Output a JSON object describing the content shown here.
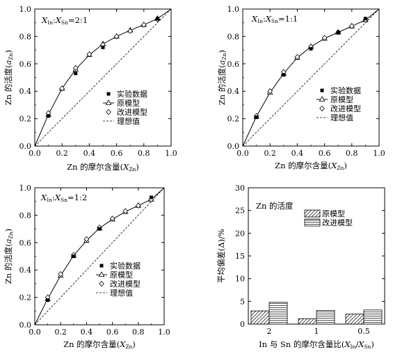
{
  "chart_data": [
    {
      "type": "scatter",
      "panel_label": "X<sub>In</sub>:X<sub>Sn</sub>=2:1",
      "panel_label_parts": {
        "x1": "X",
        "s1": "In",
        "sep": ":",
        "x2": "X",
        "s2": "Sn",
        "ratio": "=2:1"
      },
      "xlabel_parts": {
        "pre": "Zn 的摩尔含量(",
        "var": "X",
        "sub": "Zn",
        "post": ")"
      },
      "ylabel_parts": {
        "pre": "Zn 的活度(",
        "var": "a",
        "sub": "Zn",
        "post": ")"
      },
      "xlim": [
        0,
        1.0
      ],
      "ylim": [
        0,
        1.0
      ],
      "xticks": [
        "0.0",
        "0.2",
        "0.4",
        "0.6",
        "0.8",
        "1.0"
      ],
      "yticks": [
        "0.0",
        "0.2",
        "0.4",
        "0.6",
        "0.8",
        "1.0"
      ],
      "legend_position": "center-right",
      "series": [
        {
          "name": "实验数据",
          "marker": "filled-square",
          "x": [
            0.1,
            0.3,
            0.5,
            0.9
          ],
          "y": [
            0.22,
            0.53,
            0.72,
            0.93
          ]
        },
        {
          "name": "原模型",
          "marker": "triangle-line",
          "x": [
            0.0,
            0.1,
            0.2,
            0.3,
            0.4,
            0.5,
            0.6,
            0.7,
            0.8,
            0.9,
            1.0
          ],
          "y": [
            0.0,
            0.23,
            0.42,
            0.56,
            0.665,
            0.745,
            0.8,
            0.845,
            0.885,
            0.93,
            1.0
          ]
        },
        {
          "name": "改进模型",
          "marker": "diamond",
          "x": [
            0.1,
            0.2,
            0.3,
            0.4,
            0.5,
            0.6,
            0.7,
            0.8,
            0.9
          ],
          "y": [
            0.24,
            0.42,
            0.57,
            0.67,
            0.74,
            0.8,
            0.84,
            0.885,
            0.925
          ]
        },
        {
          "name": "理想值",
          "marker": "dashed-line",
          "x": [
            0,
            1.0
          ],
          "y": [
            0,
            1.0
          ]
        }
      ]
    },
    {
      "type": "scatter",
      "panel_label": "X<sub>In</sub>:X<sub>Sn</sub>=1:1",
      "panel_label_parts": {
        "x1": "X",
        "s1": "In",
        "sep": ":",
        "x2": "X",
        "s2": "Sn",
        "ratio": "=1:1"
      },
      "xlabel_parts": {
        "pre": "Zn 的摩尔含量(",
        "var": "X",
        "sub": "Zn",
        "post": ")"
      },
      "ylabel_parts": {
        "pre": "Zn 的活度(",
        "var": "a",
        "sub": "Zn",
        "post": ")"
      },
      "xlim": [
        0,
        1.0
      ],
      "ylim": [
        0,
        1.0
      ],
      "xticks": [
        "0.0",
        "0.2",
        "0.4",
        "0.6",
        "0.8",
        "1.0"
      ],
      "yticks": [
        "0.0",
        "0.2",
        "0.4",
        "0.6",
        "0.8",
        "1.0"
      ],
      "legend_position": "lower-right",
      "series": [
        {
          "name": "实验数据",
          "marker": "filled-square",
          "x": [
            0.1,
            0.3,
            0.5,
            0.7,
            0.9
          ],
          "y": [
            0.21,
            0.52,
            0.71,
            0.83,
            0.93
          ]
        },
        {
          "name": "原模型",
          "marker": "triangle-line",
          "x": [
            0.0,
            0.1,
            0.2,
            0.3,
            0.4,
            0.5,
            0.6,
            0.7,
            0.8,
            0.9,
            1.0
          ],
          "y": [
            0.0,
            0.215,
            0.39,
            0.53,
            0.645,
            0.725,
            0.785,
            0.83,
            0.875,
            0.92,
            1.0
          ]
        },
        {
          "name": "改进模型",
          "marker": "diamond",
          "x": [
            0.1,
            0.2,
            0.3,
            0.4,
            0.5,
            0.6,
            0.7,
            0.8,
            0.9
          ],
          "y": [
            0.22,
            0.4,
            0.54,
            0.65,
            0.725,
            0.79,
            0.83,
            0.875,
            0.92
          ]
        },
        {
          "name": "理想值",
          "marker": "dashed-line",
          "x": [
            0,
            1.0
          ],
          "y": [
            0,
            1.0
          ]
        }
      ]
    },
    {
      "type": "scatter",
      "panel_label": "X<sub>In</sub>:X<sub>Sn</sub>=1:2",
      "panel_label_parts": {
        "x1": "X",
        "s1": "In",
        "sep": ":",
        "x2": "X",
        "s2": "Sn",
        "ratio": "=1:2"
      },
      "xlabel_parts": {
        "pre": "Zn 的摩尔含量(",
        "var": "X",
        "sub": "Zn",
        "post": ")"
      },
      "ylabel_parts": {
        "pre": "Zn 的活度(",
        "var": "a",
        "sub": "Zn",
        "post": ")"
      },
      "xlim": [
        0,
        1.0
      ],
      "ylim": [
        0,
        1.0
      ],
      "xticks": [
        "0.0",
        "0.2",
        "0.4",
        "0.6",
        "0.8",
        "1.0"
      ],
      "yticks": [
        "0.0",
        "0.2",
        "0.4",
        "0.6",
        "0.8",
        "1.0"
      ],
      "legend_position": "lower-right",
      "series": [
        {
          "name": "实验数据",
          "marker": "filled-square",
          "x": [
            0.1,
            0.3,
            0.5,
            0.9
          ],
          "y": [
            0.18,
            0.5,
            0.7,
            0.93
          ]
        },
        {
          "name": "原模型",
          "marker": "triangle-line",
          "x": [
            0.0,
            0.1,
            0.2,
            0.3,
            0.4,
            0.5,
            0.6,
            0.7,
            0.8,
            0.9,
            1.0
          ],
          "y": [
            0.0,
            0.19,
            0.36,
            0.505,
            0.615,
            0.705,
            0.77,
            0.825,
            0.87,
            0.915,
            1.0
          ]
        },
        {
          "name": "改进模型",
          "marker": "diamond",
          "x": [
            0.1,
            0.2,
            0.3,
            0.4,
            0.5,
            0.6,
            0.7,
            0.8,
            0.9
          ],
          "y": [
            0.2,
            0.37,
            0.51,
            0.625,
            0.71,
            0.775,
            0.83,
            0.87,
            0.915
          ]
        },
        {
          "name": "理想值",
          "marker": "dashed-line",
          "x": [
            0,
            1.0
          ],
          "y": [
            0,
            1.0
          ]
        }
      ]
    },
    {
      "type": "bar",
      "title": "Zn 的活度",
      "categories": [
        "2",
        "1",
        "0.5"
      ],
      "ylim": [
        0,
        30
      ],
      "yticks": [
        "0",
        "5",
        "10",
        "15",
        "20",
        "25",
        "30"
      ],
      "ylabel": "平均偏差(Δ)/%",
      "xlabel_parts": {
        "pre": "In 与 Sn 的摩尔含量比(",
        "var1": "X",
        "sub1": "In",
        "slash": "/",
        "var2": "X",
        "sub2": "Sn",
        "post": ")"
      },
      "legend_position": "top-right",
      "series": [
        {
          "name": "原模型",
          "pattern": "diagonal-hatch",
          "values": [
            2.9,
            1.2,
            2.2
          ]
        },
        {
          "name": "改进模型",
          "pattern": "horizontal-hatch",
          "values": [
            4.8,
            3.0,
            3.1
          ]
        }
      ]
    }
  ]
}
